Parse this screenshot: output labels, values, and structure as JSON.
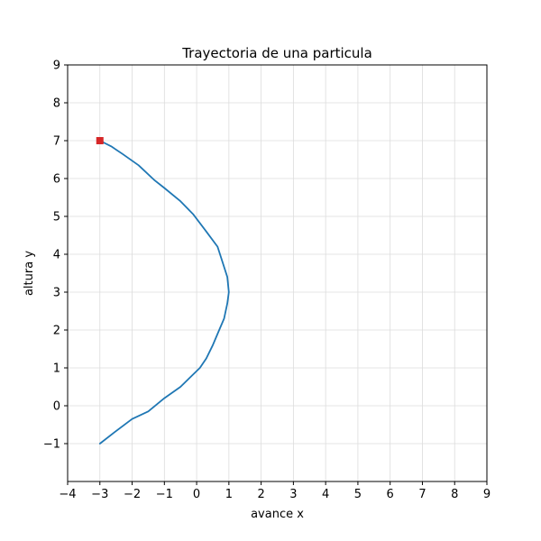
{
  "chart_data": {
    "type": "line",
    "title": "Trayectoria de una particula",
    "xlabel": "avance x",
    "ylabel": "altura y",
    "xlim": [
      -4,
      9
    ],
    "ylim": [
      -2,
      9
    ],
    "xticks": [
      -4,
      -3,
      -2,
      -1,
      0,
      1,
      2,
      3,
      4,
      5,
      6,
      7,
      8,
      9
    ],
    "yticks": [
      -1,
      0,
      1,
      2,
      3,
      4,
      5,
      6,
      7,
      8,
      9
    ],
    "grid": true,
    "series": [
      {
        "color": "#1f77b4",
        "points": [
          [
            -3.0,
            -1.0
          ],
          [
            -2.55,
            -0.7
          ],
          [
            -2.0,
            -0.35
          ],
          [
            -1.5,
            -0.15
          ],
          [
            -1.0,
            0.2
          ],
          [
            -0.5,
            0.5
          ],
          [
            -0.2,
            0.75
          ],
          [
            0.1,
            1.0
          ],
          [
            0.3,
            1.25
          ],
          [
            0.5,
            1.6
          ],
          [
            0.7,
            2.0
          ],
          [
            0.85,
            2.3
          ],
          [
            0.95,
            2.7
          ],
          [
            1.0,
            3.0
          ],
          [
            0.95,
            3.4
          ],
          [
            0.8,
            3.8
          ],
          [
            0.65,
            4.2
          ],
          [
            0.3,
            4.6
          ],
          [
            -0.1,
            5.05
          ],
          [
            -0.5,
            5.4
          ],
          [
            -1.0,
            5.75
          ],
          [
            -1.3,
            5.95
          ],
          [
            -1.8,
            6.35
          ],
          [
            -2.3,
            6.65
          ],
          [
            -2.65,
            6.85
          ],
          [
            -3.0,
            7.0
          ]
        ]
      }
    ],
    "marker": {
      "x": -3.0,
      "y": 7.0,
      "color": "#d62728",
      "shape": "square"
    }
  }
}
